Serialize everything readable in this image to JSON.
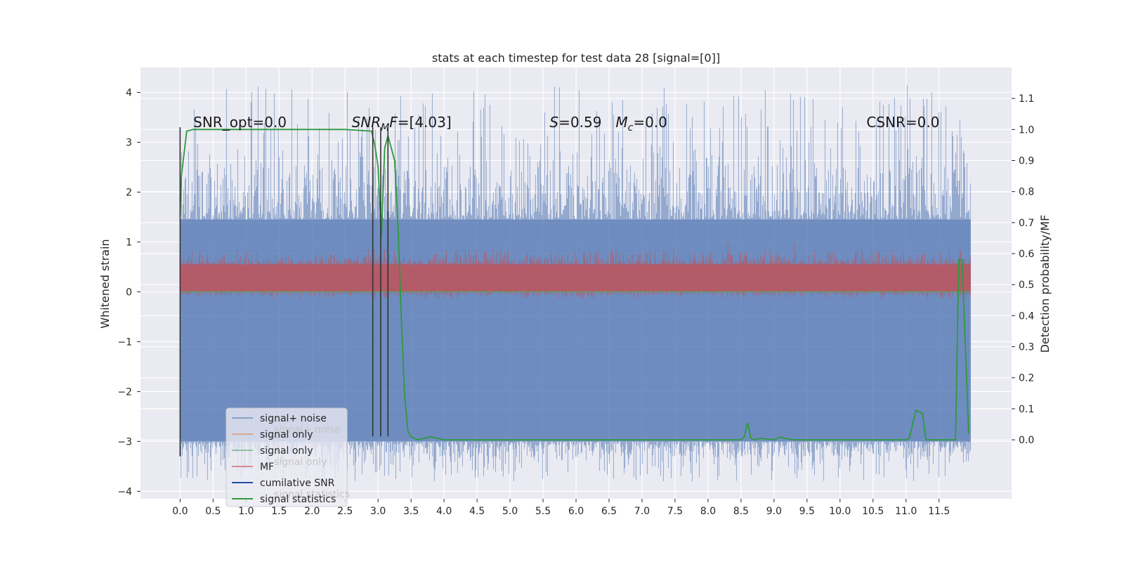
{
  "chart_data": {
    "type": "line",
    "title": "stats at each timestep for test data 28 [signal=[0]]",
    "xlabel": "",
    "ylabel": "Whitened strain",
    "y2label": "Detection probability/MF",
    "xlim": [
      -0.6,
      12.6
    ],
    "ylim": [
      -4.15,
      4.5
    ],
    "y2lim": [
      -0.19,
      1.2
    ],
    "x_ticks": [
      0.0,
      0.5,
      1.0,
      1.5,
      2.0,
      2.5,
      3.0,
      3.5,
      4.0,
      4.5,
      5.0,
      5.5,
      6.0,
      6.5,
      7.0,
      7.5,
      8.0,
      8.5,
      9.0,
      9.5,
      10.0,
      10.5,
      11.0,
      11.5
    ],
    "x_tick_labels": [
      "0.0",
      "0.5",
      "1.0",
      "1.5",
      "2.0",
      "2.5",
      "3.0",
      "3.5",
      "4.0",
      "4.5",
      "5.0",
      "5.5",
      "6.0",
      "6.5",
      "7.0",
      "7.5",
      "8.0",
      "8.5",
      "9.0",
      "9.5",
      "10.0",
      "10.5",
      "11.0",
      "11.5"
    ],
    "y_ticks": [
      -4,
      -3,
      -2,
      -1,
      0,
      1,
      2,
      3,
      4
    ],
    "y_tick_labels": [
      "−4",
      "−3",
      "−2",
      "−1",
      "0",
      "1",
      "2",
      "3",
      "4"
    ],
    "y2_ticks": [
      0.0,
      0.1,
      0.2,
      0.3,
      0.4,
      0.5,
      0.6,
      0.7,
      0.8,
      0.9,
      1.0,
      1.1
    ],
    "y2_tick_labels": [
      "0.0",
      "0.1",
      "0.2",
      "0.3",
      "0.4",
      "0.5",
      "0.6",
      "0.7",
      "0.8",
      "0.9",
      "1.0",
      "1.1"
    ],
    "grid": true,
    "legend_position": "lower-left",
    "annotations": [
      {
        "parts": [
          {
            "t": "SNR_opt=0.0",
            "i": false
          }
        ],
        "x": 0.2,
        "y": 3.3
      },
      {
        "parts": [
          {
            "t": "SNR",
            "i": true
          },
          {
            "t": "M",
            "i": true,
            "sub": true
          },
          {
            "t": "F",
            "i": true
          },
          {
            "t": "=[4.03]",
            "i": false
          }
        ],
        "x": 2.6,
        "y": 3.3
      },
      {
        "parts": [
          {
            "t": "S",
            "i": true
          },
          {
            "t": "=0.59",
            "i": false
          }
        ],
        "x": 5.6,
        "y": 3.3
      },
      {
        "parts": [
          {
            "t": "M",
            "i": true
          },
          {
            "t": "c",
            "i": true,
            "sub": true
          },
          {
            "t": "=0.0",
            "i": false
          }
        ],
        "x": 6.6,
        "y": 3.3
      },
      {
        "parts": [
          {
            "t": "CSNR=0.0",
            "i": false
          }
        ],
        "x": 10.4,
        "y": 3.3
      }
    ],
    "legend": {
      "items": [
        {
          "label": "signal+ noise",
          "color": "#4c72b0",
          "alpha": 0.55
        },
        {
          "label": "signal only",
          "color": "#dd8452",
          "alpha": 0.6
        },
        {
          "label": "signal only",
          "color": "#55a868",
          "alpha": 0.6
        },
        {
          "label": "MF",
          "color": "#c44e52",
          "alpha": 0.6
        },
        {
          "label": "cumilative SNR",
          "color": "#1f4e9e",
          "alpha": 1.0
        },
        {
          "label": "signal statistics",
          "color": "#2e9a3d",
          "alpha": 1.0
        }
      ],
      "ghost_items": [
        "signal+ noise",
        "signal only",
        "signal statistics"
      ]
    },
    "series": [
      {
        "name": "signal+ noise",
        "axis": "left",
        "style": "dense-noise",
        "color": "#4c72b0",
        "x_range": [
          0.0,
          11.98
        ],
        "core_range": [
          -3.0,
          1.45
        ],
        "peaks_x": [
          1.9,
          11.02,
          11.5,
          8.0,
          9.5
        ],
        "peaks_y": [
          4.0,
          4.15,
          3.6,
          3.3,
          3.4
        ]
      },
      {
        "name": "MF",
        "axis": "left",
        "style": "dense-noise",
        "color": "#c44e52",
        "x_range": [
          0.0,
          11.98
        ],
        "core_range": [
          0.0,
          0.55
        ],
        "peaks_x": [
          8.3,
          9.3
        ],
        "peaks_y": [
          1.0,
          0.98
        ]
      },
      {
        "name": "signal only",
        "axis": "left",
        "color": "#55a868",
        "x": [
          0.0,
          11.98
        ],
        "y": [
          0.0,
          0.0
        ]
      },
      {
        "name": "signal statistics",
        "axis": "right",
        "color": "#2e9a3d",
        "x": [
          0.0,
          0.02,
          0.1,
          0.2,
          0.5,
          1.0,
          1.5,
          2.0,
          2.5,
          2.9,
          2.95,
          3.0,
          3.05,
          3.1,
          3.15,
          3.2,
          3.25,
          3.3,
          3.35,
          3.4,
          3.45,
          3.5,
          3.6,
          3.8,
          4.0,
          4.5,
          5.0,
          5.5,
          6.0,
          6.5,
          7.0,
          7.5,
          8.0,
          8.5,
          8.55,
          8.6,
          8.65,
          8.7,
          8.8,
          9.0,
          9.05,
          9.1,
          9.15,
          9.3,
          9.5,
          10.0,
          10.5,
          11.0,
          11.05,
          11.1,
          11.15,
          11.2,
          11.25,
          11.3,
          11.35,
          11.4,
          11.6,
          11.75,
          11.8,
          11.85,
          11.9,
          11.95
        ],
        "y": [
          0.72,
          0.85,
          0.995,
          1.0,
          1.0,
          1.0,
          1.0,
          1.0,
          1.0,
          0.995,
          0.95,
          0.88,
          0.65,
          0.94,
          0.98,
          0.94,
          0.9,
          0.7,
          0.4,
          0.15,
          0.03,
          0.01,
          0.0,
          0.01,
          0.0,
          0.0,
          0.0,
          0.0,
          0.0,
          0.0,
          0.0,
          0.0,
          0.0,
          0.0,
          0.01,
          0.055,
          0.005,
          0.0,
          0.005,
          0.0,
          0.005,
          0.01,
          0.005,
          0.0,
          0.0,
          0.0,
          0.0,
          0.0,
          0.005,
          0.05,
          0.095,
          0.09,
          0.085,
          0.0,
          0.0,
          0.0,
          0.0,
          0.0,
          0.58,
          0.58,
          0.3,
          0.02
        ]
      },
      {
        "name": "cumilative SNR",
        "axis": "right",
        "style": "vlines",
        "color": "#333333",
        "x": [
          0.0,
          2.92,
          3.04,
          3.15
        ],
        "y_low": [
          -3.3,
          -2.9,
          -2.9,
          -2.9
        ],
        "y_high": [
          3.3,
          3.3,
          3.3,
          3.3
        ],
        "units": "left-axis"
      }
    ]
  }
}
